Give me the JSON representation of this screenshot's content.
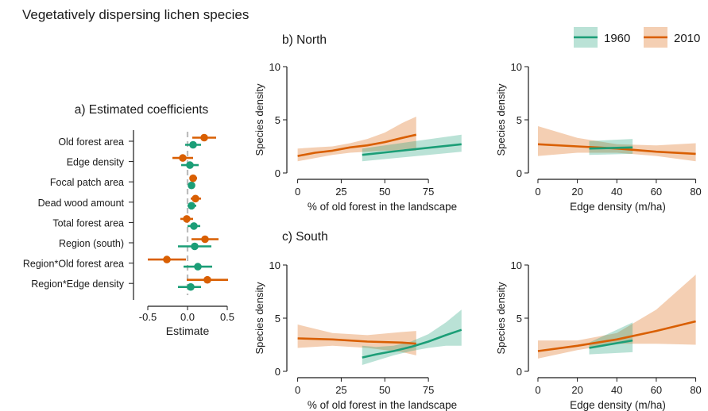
{
  "figure_title": "Vegetatively dispersing lichen species",
  "legend": {
    "entries": [
      {
        "label": "1960",
        "color": "#1b9e77"
      },
      {
        "label": "2010",
        "color": "#d95f02"
      }
    ],
    "placement": "top-right"
  },
  "chart_data": [
    {
      "panel": "a",
      "title": "a) Estimated coefficients",
      "type": "scatter",
      "subtype": "coefficient-dotplot-with-intervals",
      "xlabel": "Estimate",
      "ylabel": "",
      "xlim": [
        -0.6,
        0.6
      ],
      "xticks": [
        -0.5,
        0.0,
        0.5
      ],
      "xtick_labels": [
        "-0.5",
        "0.0",
        "0.5"
      ],
      "zero_line": true,
      "categories": [
        "Old forest area",
        "Edge density",
        "Focal patch area",
        "Dead wood amount",
        "Total forest area",
        "Region (south)",
        "Region*Old forest area",
        "Region*Edge density"
      ],
      "series": [
        {
          "name": "1960",
          "color": "#1b9e77",
          "estimate": [
            0.07,
            0.03,
            0.05,
            0.05,
            0.08,
            0.09,
            0.13,
            0.04
          ],
          "lower": [
            -0.03,
            -0.08,
            0.01,
            0.0,
            0.0,
            -0.12,
            -0.05,
            -0.12
          ],
          "upper": [
            0.17,
            0.14,
            0.09,
            0.11,
            0.16,
            0.3,
            0.31,
            0.17
          ]
        },
        {
          "name": "2010",
          "color": "#d95f02",
          "estimate": [
            0.21,
            -0.06,
            0.07,
            0.1,
            -0.01,
            0.22,
            -0.26,
            0.25
          ],
          "lower": [
            0.06,
            -0.19,
            0.03,
            0.04,
            -0.09,
            0.05,
            -0.5,
            -0.01
          ],
          "upper": [
            0.36,
            0.07,
            0.12,
            0.17,
            0.07,
            0.39,
            -0.02,
            0.51
          ]
        }
      ]
    },
    {
      "panel": "b-left",
      "title": "b) North",
      "type": "line",
      "subtype": "line-with-confidence-band",
      "xlabel": "% of old forest in the landscape",
      "ylabel": "Species density",
      "xlim": [
        -3,
        100
      ],
      "ylim": [
        0,
        10
      ],
      "xticks": [
        0,
        25,
        50,
        75
      ],
      "yticks": [
        0,
        5,
        10
      ],
      "series": [
        {
          "name": "1960",
          "color": "#1b9e77",
          "x": [
            37,
            94
          ],
          "y": [
            1.7,
            2.7
          ],
          "band_lower": [
            1.1,
            2.0
          ],
          "band_upper": [
            2.3,
            3.6
          ]
        },
        {
          "name": "2010",
          "color": "#d95f02",
          "x": [
            0,
            10,
            20,
            30,
            40,
            50,
            60,
            68
          ],
          "y": [
            1.6,
            1.9,
            2.1,
            2.4,
            2.6,
            2.9,
            3.3,
            3.6
          ],
          "band_lower": [
            1.1,
            1.4,
            1.7,
            1.9,
            2.0,
            2.1,
            2.1,
            2.1
          ],
          "band_upper": [
            2.3,
            2.4,
            2.5,
            2.8,
            3.2,
            3.8,
            4.7,
            5.3
          ]
        }
      ]
    },
    {
      "panel": "b-right",
      "title": "",
      "type": "line",
      "subtype": "line-with-confidence-band",
      "xlabel": "Edge density (m/ha)",
      "ylabel": "Species density",
      "xlim": [
        -2,
        83
      ],
      "ylim": [
        0,
        10
      ],
      "xticks": [
        0,
        20,
        40,
        60,
        80
      ],
      "yticks": [
        0,
        5,
        10
      ],
      "series": [
        {
          "name": "1960",
          "color": "#1b9e77",
          "x": [
            26,
            48
          ],
          "y": [
            2.3,
            2.4
          ],
          "band_lower": [
            1.7,
            1.8
          ],
          "band_upper": [
            3.0,
            3.2
          ]
        },
        {
          "name": "2010",
          "color": "#d95f02",
          "x": [
            0,
            20,
            40,
            60,
            80
          ],
          "y": [
            2.7,
            2.5,
            2.3,
            2.0,
            1.8
          ],
          "band_lower": [
            1.6,
            1.9,
            1.9,
            1.6,
            1.1
          ],
          "band_upper": [
            4.4,
            3.3,
            2.7,
            2.6,
            2.8
          ]
        }
      ]
    },
    {
      "panel": "c-left",
      "title": "c) South",
      "type": "line",
      "subtype": "line-with-confidence-band",
      "xlabel": "% of old forest in the landscape",
      "ylabel": "Species density",
      "xlim": [
        -3,
        100
      ],
      "ylim": [
        0,
        10
      ],
      "xticks": [
        0,
        25,
        50,
        75
      ],
      "yticks": [
        0,
        5,
        10
      ],
      "series": [
        {
          "name": "1960",
          "color": "#1b9e77",
          "x": [
            37,
            45,
            55,
            65,
            75,
            85,
            94
          ],
          "y": [
            1.3,
            1.6,
            1.9,
            2.3,
            2.8,
            3.4,
            3.9
          ],
          "band_lower": [
            0.6,
            1.0,
            1.5,
            1.9,
            2.2,
            2.4,
            2.4
          ],
          "band_upper": [
            2.4,
            2.3,
            2.4,
            2.8,
            3.5,
            4.6,
            5.8
          ]
        },
        {
          "name": "2010",
          "color": "#d95f02",
          "x": [
            0,
            20,
            40,
            60,
            68
          ],
          "y": [
            3.1,
            3.0,
            2.8,
            2.7,
            2.6
          ],
          "band_lower": [
            2.2,
            2.4,
            2.2,
            1.8,
            1.5
          ],
          "band_upper": [
            4.4,
            3.6,
            3.4,
            3.7,
            3.8
          ]
        }
      ]
    },
    {
      "panel": "c-right",
      "title": "",
      "type": "line",
      "subtype": "line-with-confidence-band",
      "xlabel": "Edge density (m/ha)",
      "ylabel": "Species density",
      "xlim": [
        -2,
        83
      ],
      "ylim": [
        0,
        10
      ],
      "xticks": [
        0,
        20,
        40,
        60,
        80
      ],
      "yticks": [
        0,
        5,
        10
      ],
      "series": [
        {
          "name": "1960",
          "color": "#1b9e77",
          "x": [
            26,
            48
          ],
          "y": [
            2.2,
            2.9
          ],
          "band_lower": [
            1.6,
            1.8
          ],
          "band_upper": [
            2.7,
            4.6
          ]
        },
        {
          "name": "2010",
          "color": "#d95f02",
          "x": [
            0,
            20,
            40,
            60,
            80
          ],
          "y": [
            1.9,
            2.4,
            3.0,
            3.8,
            4.7
          ],
          "band_lower": [
            1.2,
            2.0,
            2.6,
            2.6,
            2.5
          ],
          "band_upper": [
            2.9,
            2.9,
            3.6,
            5.8,
            9.1
          ]
        }
      ]
    }
  ]
}
